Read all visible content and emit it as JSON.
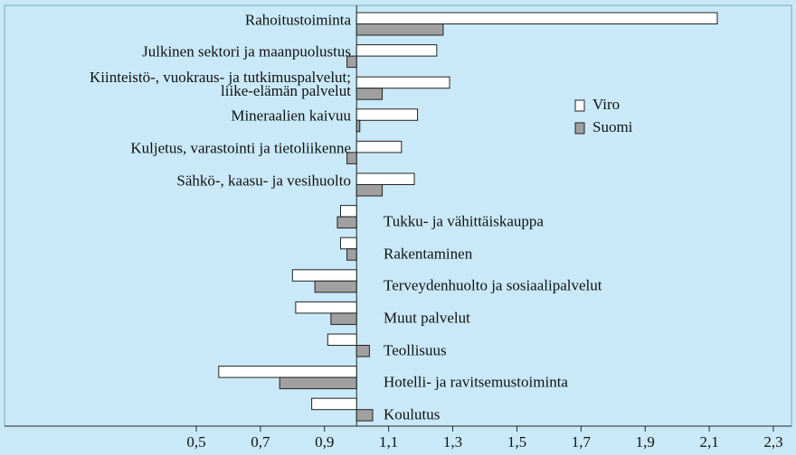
{
  "chart_data": {
    "type": "barh",
    "baseline": 1,
    "categories": [
      "Rahoitustoiminta",
      "Julkinen sektori ja maanpuolustus",
      "Kiinteistö-, vuokraus- ja tutkimuspalvelut;\nliike-elämän palvelut",
      "Mineraalien kaivuu",
      "Kuljetus, varastointi ja tietoliikenne",
      "Sähkö-, kaasu- ja vesihuolto",
      "Tukku- ja vähittäiskauppa",
      "Rakentaminen",
      "Terveydenhuolto ja sosiaalipalvelut",
      "Muut palvelut",
      "Teollisuus",
      "Hotelli- ja ravitsemustoiminta",
      "Koulutus"
    ],
    "series": [
      {
        "name": "Viro",
        "color": "#ffffff",
        "values": [
          2.125,
          1.25,
          1.29,
          1.19,
          1.14,
          1.18,
          0.95,
          0.95,
          0.8,
          0.81,
          0.91,
          0.57,
          0.86
        ]
      },
      {
        "name": "Suomi",
        "color": "#a0a0a0",
        "values": [
          1.27,
          0.97,
          1.08,
          1.01,
          0.97,
          1.08,
          0.94,
          0.97,
          0.87,
          0.92,
          1.04,
          0.76,
          1.05
        ]
      }
    ],
    "xlim": [
      0.5,
      2.3
    ],
    "xticks": [
      {
        "value": 0.5,
        "label": "0,5"
      },
      {
        "value": 0.7,
        "label": "0,7"
      },
      {
        "value": 0.9,
        "label": "0,9"
      },
      {
        "value": 1.1,
        "label": "1,1"
      },
      {
        "value": 1.3,
        "label": "1,3"
      },
      {
        "value": 1.5,
        "label": "1,5"
      },
      {
        "value": 1.7,
        "label": "1,7"
      },
      {
        "value": 1.9,
        "label": "1,9"
      },
      {
        "value": 2.1,
        "label": "2,1"
      },
      {
        "value": 2.3,
        "label": "2,3"
      }
    ]
  }
}
